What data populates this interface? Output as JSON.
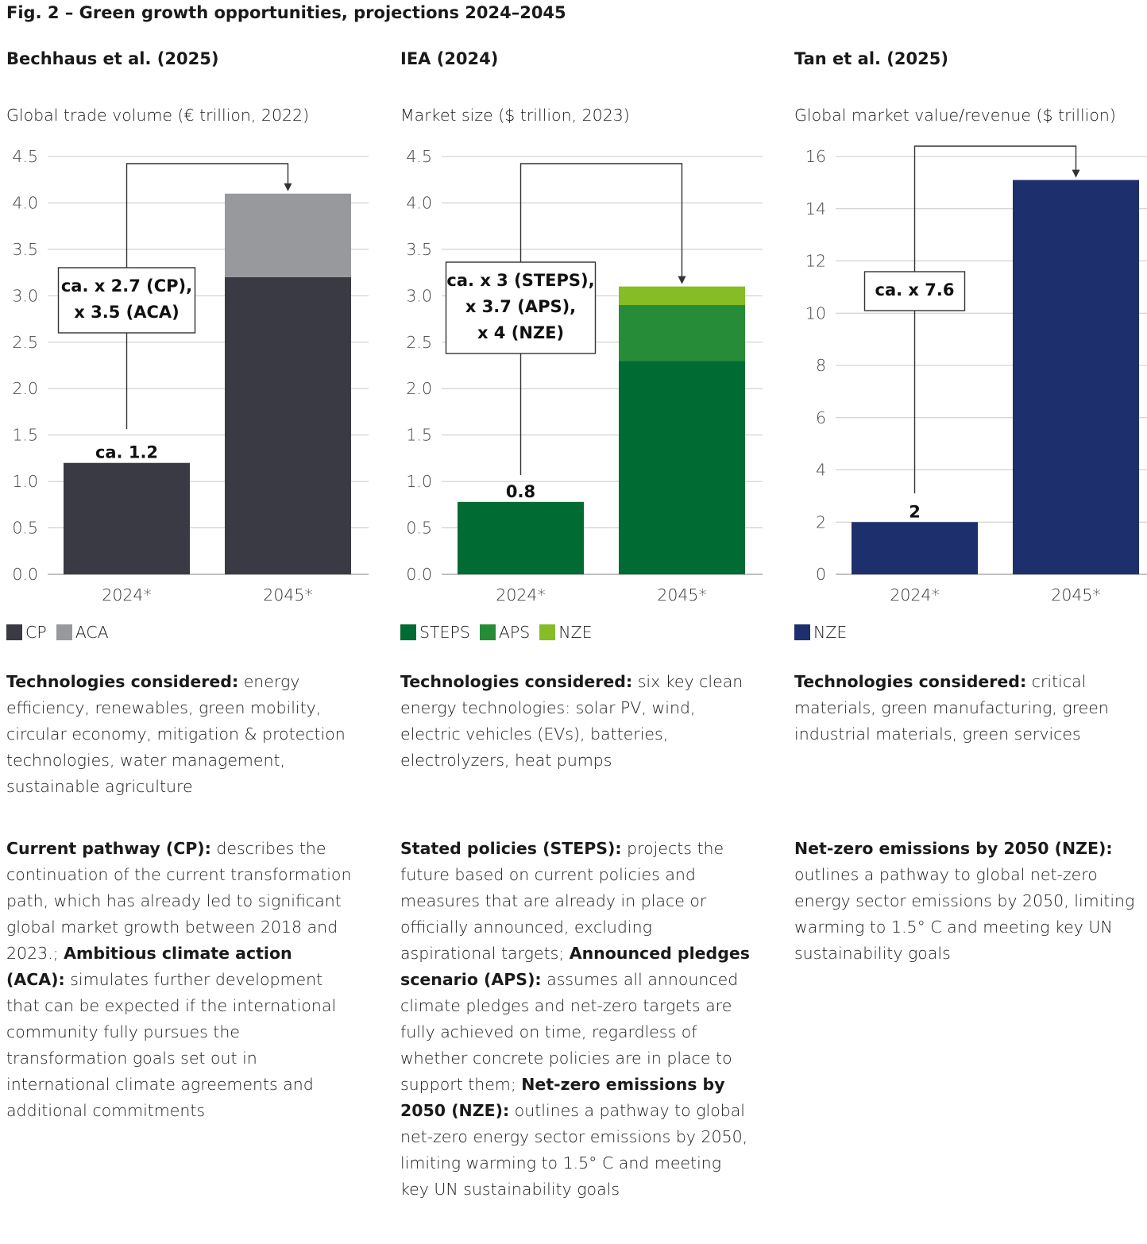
{
  "figure_title": "Fig. 2 – Green growth opportunities, projections 2024–2045",
  "panels": [
    {
      "source": "Bechhaus et al. (2025)",
      "subtitle": "Global trade volume (€ trillion, 2022)",
      "legend": [
        {
          "label": "CP",
          "color": "#3a3a44"
        },
        {
          "label": "ACA",
          "color": "#98999d"
        }
      ],
      "tech_label": "Technologies considered:",
      "tech_text": " energy efficiency, renewables, green mobility, circular economy, mitigation & protection technologies, water management, sustainable agriculture",
      "scenario_parts": [
        {
          "bold": true,
          "text": "Current pathway (CP):"
        },
        {
          "bold": false,
          "text": " describes the continuation of the current transformation path, which has already led to significant global market growth between 2018 and 2023.; "
        },
        {
          "bold": true,
          "text": "Ambitious climate action (ACA):"
        },
        {
          "bold": false,
          "text": " simulates further development that can be expected if the international community fully pursues the transformation goals set out in international climate agreements and additional commitments"
        }
      ]
    },
    {
      "source": "IEA (2024)",
      "subtitle": "Market size ($ trillion, 2023)",
      "legend": [
        {
          "label": "STEPS",
          "color": "#006b33"
        },
        {
          "label": "APS",
          "color": "#268c37"
        },
        {
          "label": "NZE",
          "color": "#86bc25"
        }
      ],
      "tech_label": "Technologies considered:",
      "tech_text": " six key clean energy technologies: solar PV, wind, electric vehicles (EVs), batteries, electrolyzers, heat pumps",
      "scenario_parts": [
        {
          "bold": true,
          "text": "Stated policies (STEPS):"
        },
        {
          "bold": false,
          "text": " projects the future based on current policies and measures that are already in place or officially announced, excluding aspirational targets; "
        },
        {
          "bold": true,
          "text": "Announced pledges scenario (APS):"
        },
        {
          "bold": false,
          "text": " assumes all announced climate pledges and net-zero targets are fully achieved on time, regardless of whether concrete policies are in place to support them; "
        },
        {
          "bold": true,
          "text": "Net-zero emissions by 2050 (NZE):"
        },
        {
          "bold": false,
          "text": " outlines a pathway to global net-zero energy sector emissions by 2050, limiting warming to 1.5° C and meeting key UN sustainability goals"
        }
      ]
    },
    {
      "source": "Tan et al. (2025)",
      "subtitle": "Global market value/revenue ($ trillion)",
      "legend": [
        {
          "label": "NZE",
          "color": "#1e2f6e"
        }
      ],
      "tech_label": "Technologies considered:",
      "tech_text": " critical materials, green manufacturing, green industrial materials, green services",
      "scenario_parts": [
        {
          "bold": true,
          "text": "Net-zero emissions by 2050 (NZE):"
        },
        {
          "bold": false,
          "text": " outlines a pathway to global net-zero energy sector emissions by 2050, limiting warming to 1.5° C and meeting key UN sustainability goals"
        }
      ]
    }
  ],
  "chart_data": [
    {
      "type": "bar",
      "stacked": true,
      "title": "Bechhaus et al. (2025)",
      "ylabel": "Global trade volume (€ trillion, 2022)",
      "categories": [
        "2024*",
        "2045*"
      ],
      "series": [
        {
          "name": "CP",
          "color": "#3a3a44",
          "values": [
            1.2,
            3.2
          ]
        },
        {
          "name": "ACA",
          "color": "#98999d",
          "values": [
            0,
            0.9
          ]
        }
      ],
      "ylim": [
        0,
        4.5
      ],
      "yticks": [
        "0.0",
        "0.5",
        "1.0",
        "1.5",
        "2.0",
        "2.5",
        "3.0",
        "3.5",
        "4.0",
        "4.5"
      ],
      "grid": true,
      "value_label": "ca. 1.2",
      "annotation": [
        "ca. x 2.7 (CP),",
        "x 3.5 (ACA)"
      ]
    },
    {
      "type": "bar",
      "stacked": true,
      "title": "IEA (2024)",
      "ylabel": "Market size ($ trillion, 2023)",
      "categories": [
        "2024*",
        "2045*"
      ],
      "series": [
        {
          "name": "STEPS",
          "color": "#006b33",
          "values": [
            0.78,
            2.3
          ]
        },
        {
          "name": "APS",
          "color": "#268c37",
          "values": [
            0,
            0.6
          ]
        },
        {
          "name": "NZE",
          "color": "#86bc25",
          "values": [
            0,
            0.2
          ]
        }
      ],
      "ylim": [
        0,
        4.5
      ],
      "yticks": [
        "0.0",
        "0.5",
        "1.0",
        "1.5",
        "2.0",
        "2.5",
        "3.0",
        "3.5",
        "4.0",
        "4.5"
      ],
      "grid": true,
      "value_label": "0.8",
      "annotation": [
        "ca. x 3 (STEPS),",
        "x 3.7 (APS),",
        "x 4 (NZE)"
      ]
    },
    {
      "type": "bar",
      "stacked": true,
      "title": "Tan et al. (2025)",
      "ylabel": "Global market value/revenue ($ trillion)",
      "categories": [
        "2024*",
        "2045*"
      ],
      "series": [
        {
          "name": "NZE",
          "color": "#1e2f6e",
          "values": [
            2,
            15.1
          ]
        }
      ],
      "ylim": [
        0,
        16
      ],
      "yticks": [
        "0",
        "2",
        "4",
        "6",
        "8",
        "10",
        "12",
        "14",
        "16"
      ],
      "grid": true,
      "value_label": "2",
      "annotation": [
        "ca. x 7.6"
      ]
    }
  ]
}
